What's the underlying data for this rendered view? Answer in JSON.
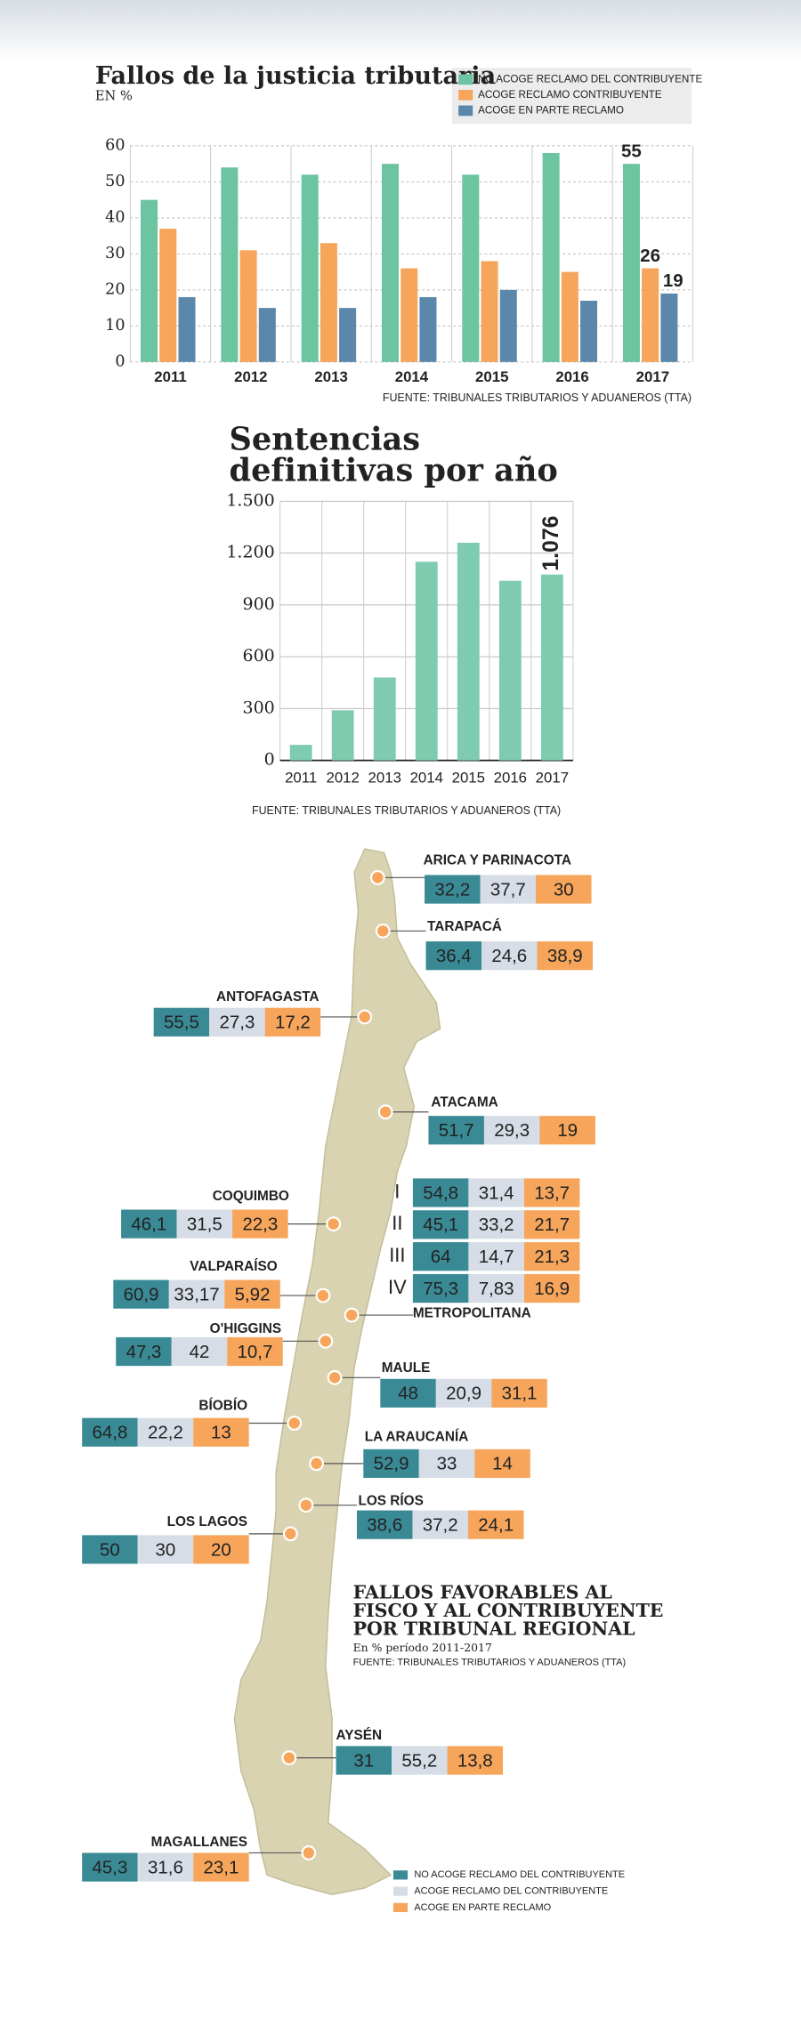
{
  "chart_data": [
    {
      "type": "bar",
      "title": "Fallos de la justicia tributaria",
      "subtitle": "EN %",
      "categories": [
        "2011",
        "2012",
        "2013",
        "2014",
        "2015",
        "2016",
        "2017"
      ],
      "series": [
        {
          "name": "NO ACOGE RECLAMO DEL CONTRIBUYENTE",
          "color": "#6cc4a1",
          "values": [
            45,
            54,
            52,
            55,
            52,
            58,
            55
          ],
          "value_labels": [
            null,
            null,
            null,
            null,
            null,
            null,
            "55"
          ]
        },
        {
          "name": "ACOGE RECLAMO CONTRIBUYENTE",
          "color": "#f6a55b",
          "values": [
            37,
            31,
            33,
            26,
            28,
            25,
            26
          ],
          "value_labels": [
            null,
            null,
            null,
            null,
            null,
            null,
            "26"
          ]
        },
        {
          "name": "ACOGE EN PARTE RECLAMO",
          "color": "#5b87ab",
          "values": [
            18,
            15,
            15,
            18,
            20,
            17,
            19
          ],
          "value_labels": [
            null,
            null,
            null,
            null,
            null,
            null,
            "19"
          ]
        }
      ],
      "ylim": [
        0,
        60
      ],
      "yticks": [
        0,
        10,
        20,
        30,
        40,
        50,
        60
      ],
      "grid": true,
      "source": "FUENTE: TRIBUNALES TRIBUTARIOS Y ADUANEROS (TTA)"
    },
    {
      "type": "bar",
      "title": [
        "Sentencias",
        "definitivas por año"
      ],
      "categories": [
        "2011",
        "2012",
        "2013",
        "2014",
        "2015",
        "2016",
        "2017"
      ],
      "values": [
        90,
        290,
        480,
        1150,
        1260,
        1040,
        1076
      ],
      "value_labels": [
        null,
        null,
        null,
        null,
        null,
        null,
        "1.076"
      ],
      "color": "#7fcbb0",
      "ylim": [
        0,
        1500
      ],
      "yticks": [
        0,
        300,
        600,
        900,
        {
          "value": 1200,
          "label": "1.200"
        },
        {
          "value": 1500,
          "label": "1.500"
        }
      ],
      "grid": true,
      "source": "FUENTE: TRIBUNALES TRIBUTARIOS Y ADUANEROS (TTA)"
    }
  ],
  "map": {
    "title": [
      "FALLOS FAVORABLES AL",
      "FISCO Y AL CONTRIBUYENTE",
      "POR TRIBUNAL REGIONAL"
    ],
    "subtitle": "En % período 2011-2017",
    "source": "FUENTE: TRIBUNALES TRIBUTARIOS Y ADUANEROS (TTA)",
    "legend": [
      {
        "name": "NO ACOGE RECLAMO DEL CONTRIBUYENTE",
        "color": "#3a8a96"
      },
      {
        "name": "ACOGE RECLAMO DEL CONTRIBUYENTE",
        "color": "#d6dde6"
      },
      {
        "name": "ACOGE EN PARTE RECLAMO",
        "color": "#f6a55b"
      }
    ],
    "regions": [
      {
        "name": "ARICA Y PARINACOTA",
        "rows": [
          [
            "32,2",
            "37,7",
            "30"
          ]
        ]
      },
      {
        "name": "TARAPACÁ",
        "rows": [
          [
            "36,4",
            "24,6",
            "38,9"
          ]
        ]
      },
      {
        "name": "ANTOFAGASTA",
        "rows": [
          [
            "55,5",
            "27,3",
            "17,2"
          ]
        ]
      },
      {
        "name": "ATACAMA",
        "rows": [
          [
            "51,7",
            "29,3",
            "19"
          ]
        ]
      },
      {
        "name": "COQUIMBO",
        "rows": [
          [
            "46,1",
            "31,5",
            "22,3"
          ]
        ]
      },
      {
        "name": "METROPOLITANA",
        "row_labels": [
          "I",
          "II",
          "III",
          "IV"
        ],
        "rows": [
          [
            "54,8",
            "31,4",
            "13,7"
          ],
          [
            "45,1",
            "33,2",
            "21,7"
          ],
          [
            "64",
            "14,7",
            "21,3"
          ],
          [
            "75,3",
            "7,83",
            "16,9"
          ]
        ]
      },
      {
        "name": "VALPARAÍSO",
        "rows": [
          [
            "60,9",
            "33,17",
            "5,92"
          ]
        ]
      },
      {
        "name": "O'HIGGINS",
        "rows": [
          [
            "47,3",
            "42",
            "10,7"
          ]
        ]
      },
      {
        "name": "MAULE",
        "rows": [
          [
            "48",
            "20,9",
            "31,1"
          ]
        ]
      },
      {
        "name": "BÍOBÍO",
        "rows": [
          [
            "64,8",
            "22,2",
            "13"
          ]
        ]
      },
      {
        "name": "LA ARAUCANÍA",
        "rows": [
          [
            "52,9",
            "33",
            "14"
          ]
        ]
      },
      {
        "name": "LOS RÍOS",
        "rows": [
          [
            "38,6",
            "37,2",
            "24,1"
          ]
        ]
      },
      {
        "name": "LOS LAGOS",
        "rows": [
          [
            "50",
            "30",
            "20"
          ]
        ]
      },
      {
        "name": "AYSÉN",
        "rows": [
          [
            "31",
            "55,2",
            "13,8"
          ]
        ]
      },
      {
        "name": "MAGALLANES",
        "rows": [
          [
            "45,3",
            "31,6",
            "23,1"
          ]
        ]
      }
    ]
  }
}
